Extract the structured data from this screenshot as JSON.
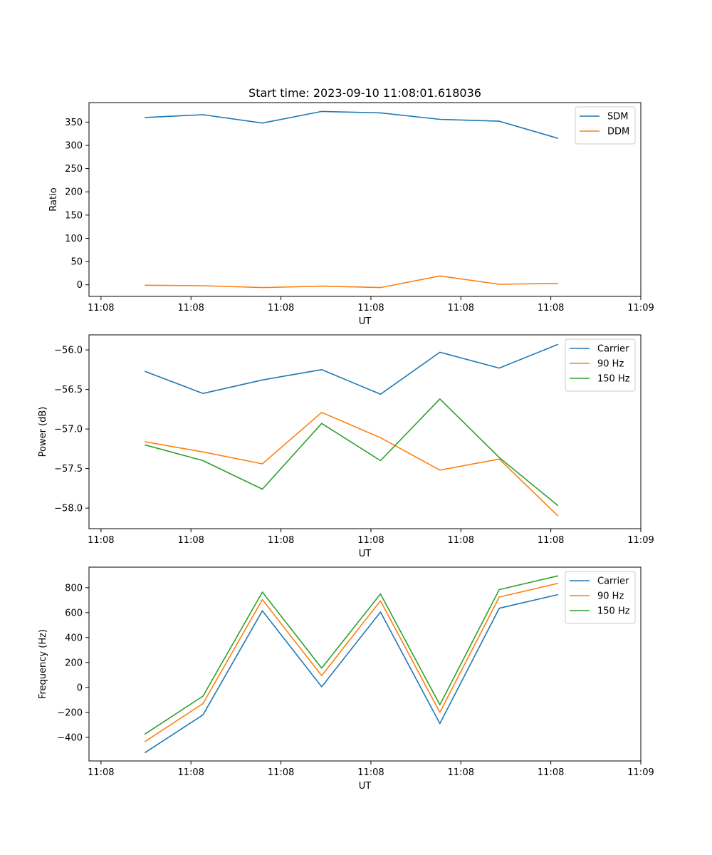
{
  "chart_data": [
    {
      "type": "line",
      "title": "Start time: 2023-09-10 11:08:01.618036",
      "xlabel": "UT",
      "ylabel": "Ratio",
      "xlim": [
        -0.2,
        9.0
      ],
      "ylim": [
        -25,
        392
      ],
      "x_ticks": [
        0,
        1.5,
        3,
        4.5,
        6,
        7.5,
        9
      ],
      "x_tick_labels": [
        "11:08",
        "11:08",
        "11:08",
        "11:08",
        "11:08",
        "11:08",
        "11:09"
      ],
      "y_ticks": [
        0,
        50,
        100,
        150,
        200,
        250,
        300,
        350
      ],
      "y_tick_labels": [
        "0",
        "50",
        "100",
        "150",
        "200",
        "250",
        "300",
        "350"
      ],
      "legend_position": "top-right",
      "x": [
        0.73,
        1.7,
        2.69,
        3.68,
        4.66,
        5.65,
        6.64,
        7.62
      ],
      "series": [
        {
          "name": "SDM",
          "color": "#1f77b4",
          "values": [
            360,
            366,
            348,
            373,
            370,
            356,
            352,
            315
          ]
        },
        {
          "name": "DDM",
          "color": "#ff7f0e",
          "values": [
            -1,
            -2,
            -6,
            -3,
            -6,
            19,
            1,
            3
          ]
        }
      ]
    },
    {
      "type": "line",
      "title": "",
      "xlabel": "UT",
      "ylabel": "Power (dB)",
      "xlim": [
        -0.2,
        9.0
      ],
      "ylim": [
        -58.26,
        -55.81
      ],
      "x_ticks": [
        0,
        1.5,
        3,
        4.5,
        6,
        7.5,
        9
      ],
      "x_tick_labels": [
        "11:08",
        "11:08",
        "11:08",
        "11:08",
        "11:08",
        "11:08",
        "11:09"
      ],
      "y_ticks": [
        -58.0,
        -57.5,
        -57.0,
        -56.5,
        -56.0
      ],
      "y_tick_labels": [
        "−58.0",
        "−57.5",
        "−57.0",
        "−56.5",
        "−56.0"
      ],
      "legend_position": "top-right",
      "x": [
        0.73,
        1.7,
        2.69,
        3.68,
        4.66,
        5.65,
        6.64,
        7.62
      ],
      "series": [
        {
          "name": "Carrier",
          "color": "#1f77b4",
          "values": [
            -56.27,
            -56.55,
            -56.38,
            -56.25,
            -56.56,
            -56.03,
            -56.23,
            -55.93
          ]
        },
        {
          "name": "90 Hz",
          "color": "#ff7f0e",
          "values": [
            -57.16,
            -57.29,
            -57.44,
            -56.79,
            -57.11,
            -57.52,
            -57.38,
            -58.1
          ]
        },
        {
          "name": "150 Hz",
          "color": "#2ca02c",
          "values": [
            -57.2,
            -57.4,
            -57.76,
            -56.93,
            -57.4,
            -56.62,
            -57.36,
            -57.97
          ]
        }
      ]
    },
    {
      "type": "line",
      "title": "",
      "xlabel": "UT",
      "ylabel": "Frequency (Hz)",
      "xlim": [
        -0.2,
        9.0
      ],
      "ylim": [
        -590,
        965
      ],
      "x_ticks": [
        0,
        1.5,
        3,
        4.5,
        6,
        7.5,
        9
      ],
      "x_tick_labels": [
        "11:08",
        "11:08",
        "11:08",
        "11:08",
        "11:08",
        "11:08",
        "11:09"
      ],
      "y_ticks": [
        -400,
        -200,
        0,
        200,
        400,
        600,
        800
      ],
      "y_tick_labels": [
        "−400",
        "−200",
        "0",
        "200",
        "400",
        "600",
        "800"
      ],
      "legend_position": "top-right",
      "x": [
        0.73,
        1.7,
        2.69,
        3.68,
        4.66,
        5.65,
        6.64,
        7.62
      ],
      "series": [
        {
          "name": "Carrier",
          "color": "#1f77b4",
          "values": [
            -525,
            -220,
            615,
            5,
            605,
            -290,
            635,
            745
          ]
        },
        {
          "name": "90 Hz",
          "color": "#ff7f0e",
          "values": [
            -435,
            -130,
            705,
            95,
            695,
            -200,
            725,
            835
          ]
        },
        {
          "name": "150 Hz",
          "color": "#2ca02c",
          "values": [
            -375,
            -70,
            765,
            155,
            750,
            -140,
            785,
            895
          ]
        }
      ]
    }
  ]
}
